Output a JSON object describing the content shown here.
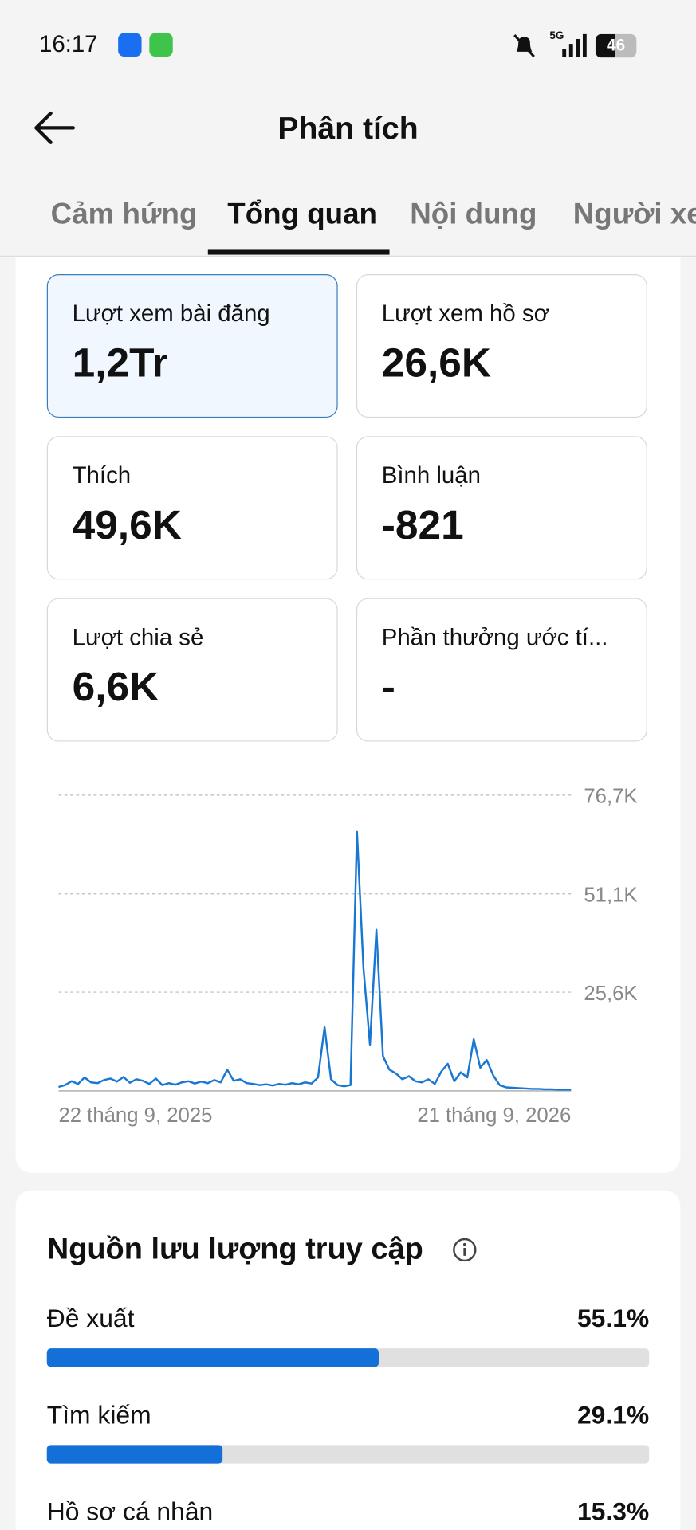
{
  "status_bar": {
    "time": "16:17",
    "network": "5G",
    "battery": "46"
  },
  "header": {
    "title": "Phân tích"
  },
  "tabs": [
    "Cảm hứng",
    "Tổng quan",
    "Nội dung",
    "Người xem"
  ],
  "metrics": [
    {
      "label": "Lượt xem bài đăng",
      "value": "1,2Tr"
    },
    {
      "label": "Lượt xem hồ sơ",
      "value": "26,6K"
    },
    {
      "label": "Thích",
      "value": "49,6K"
    },
    {
      "label": "Bình luận",
      "value": "-821"
    },
    {
      "label": "Lượt chia sẻ",
      "value": "6,6K"
    },
    {
      "label": "Phần thưởng ước tí...",
      "value": "-"
    }
  ],
  "chart_data": {
    "type": "line",
    "color": "#1877d2",
    "grid": true,
    "categories": [
      "22 tháng 9, 2025",
      null,
      null,
      null,
      null,
      null,
      null,
      null,
      null,
      null,
      null,
      null,
      null,
      null,
      null,
      null,
      null,
      null,
      null,
      null,
      null,
      null,
      null,
      null,
      null,
      null,
      null,
      null,
      null,
      null,
      null,
      null,
      null,
      null,
      null,
      null,
      null,
      null,
      null,
      null,
      null,
      null,
      null,
      null,
      null,
      null,
      null,
      null,
      null,
      null,
      null,
      null,
      null,
      null,
      null,
      null,
      null,
      null,
      null,
      null,
      null,
      null,
      null,
      null,
      null,
      null,
      null,
      null,
      null,
      null,
      null,
      null,
      null,
      null,
      null,
      null,
      null,
      null,
      null,
      "21 tháng 9, 2026"
    ],
    "values": [
      1000,
      1500,
      2500,
      1800,
      3500,
      2200,
      2000,
      2800,
      3200,
      2400,
      3600,
      2100,
      3000,
      2600,
      1800,
      3200,
      1500,
      2000,
      1600,
      2200,
      2500,
      1900,
      2400,
      2000,
      2800,
      2200,
      5500,
      2600,
      3000,
      2000,
      1800,
      1500,
      1700,
      1400,
      1800,
      1600,
      2000,
      1700,
      2200,
      1900,
      3500,
      16500,
      3000,
      1500,
      1200,
      1500,
      67200,
      32000,
      12000,
      41800,
      9000,
      5500,
      4500,
      3000,
      3800,
      2500,
      2200,
      3000,
      1800,
      5000,
      7000,
      2500,
      4800,
      3500,
      13400,
      6000,
      8000,
      4000,
      1500,
      900,
      800,
      700,
      600,
      500,
      500,
      400,
      400,
      300,
      300,
      300
    ],
    "ylim": [
      0,
      76700
    ],
    "yticks": [
      {
        "value": 25600,
        "label": "25,6K"
      },
      {
        "value": 51100,
        "label": "51,1K"
      },
      {
        "value": 76700,
        "label": "76,7K"
      }
    ]
  },
  "traffic": {
    "title": "Nguồn lưu lượng truy cập",
    "xlim": [
      0,
      100
    ],
    "categories": [
      "Đề xuất",
      "Tìm kiếm",
      "Hồ sơ cá nhân"
    ],
    "values": [
      55.1,
      29.1,
      15.3
    ],
    "value_labels": [
      "55.1%",
      "29.1%",
      "15.3%"
    ]
  }
}
